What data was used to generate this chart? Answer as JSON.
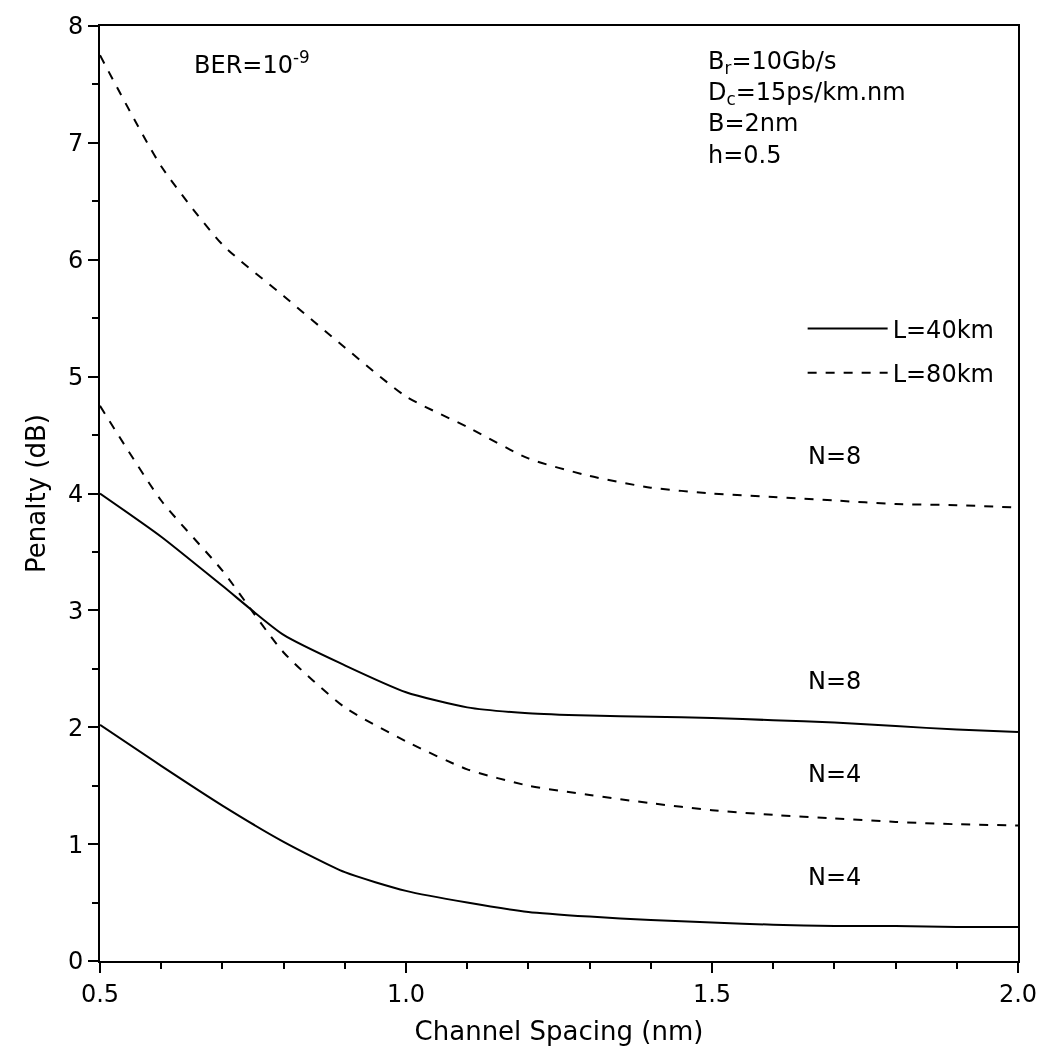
{
  "chart_data": {
    "type": "line",
    "xlabel": "Channel Spacing (nm)",
    "ylabel": "Penalty (dB)",
    "x": [
      0.5,
      0.6,
      0.7,
      0.8,
      0.9,
      1.0,
      1.1,
      1.2,
      1.3,
      1.4,
      1.5,
      1.6,
      1.7,
      1.8,
      1.9,
      2.0
    ],
    "series": [
      {
        "name": "L=40km",
        "color": "#000000",
        "line_style": "solid",
        "values": [
          4.0,
          3.63,
          3.21,
          2.79,
          2.53,
          2.3,
          2.17,
          2.12,
          2.1,
          2.09,
          2.08,
          2.06,
          2.04,
          2.01,
          1.98,
          1.96
        ]
      },
      {
        "name": "L=80km",
        "color": "#000000",
        "line_style": "dashed",
        "values": [
          7.75,
          6.8,
          6.13,
          5.69,
          5.25,
          4.83,
          4.57,
          4.3,
          4.15,
          4.05,
          4.0,
          3.97,
          3.94,
          3.91,
          3.9,
          3.88
        ]
      },
      {
        "color": "#000000",
        "line_style": "solid",
        "values": [
          2.02,
          1.67,
          1.33,
          1.02,
          0.76,
          0.6,
          0.5,
          0.42,
          0.38,
          0.35,
          0.33,
          0.31,
          0.3,
          0.3,
          0.29,
          0.29
        ]
      },
      {
        "color": "#000000",
        "line_style": "dashed",
        "values": [
          4.75,
          3.94,
          3.34,
          2.64,
          2.17,
          1.88,
          1.64,
          1.5,
          1.42,
          1.35,
          1.29,
          1.25,
          1.22,
          1.19,
          1.17,
          1.16
        ]
      }
    ],
    "xlim": [
      0.5,
      2.0
    ],
    "ylim": [
      0,
      8
    ],
    "xticks": [
      0.5,
      {
        "value": 1.0,
        "label": "1.0"
      },
      1.5,
      {
        "value": 2.0,
        "label": "2.0"
      }
    ],
    "yticks": [
      0,
      1,
      2,
      3,
      4,
      5,
      6,
      7,
      8
    ],
    "legend": "top right",
    "marker": "none",
    "annotations": [
      "BER=10$^{-9}$",
      "B$_{r}$=10Gb/s\nD$_{c}$=15ps/km.nm\nB=2nm\nh=0.5",
      "N=8",
      "N=8",
      "N=4",
      "N=4"
    ]
  }
}
